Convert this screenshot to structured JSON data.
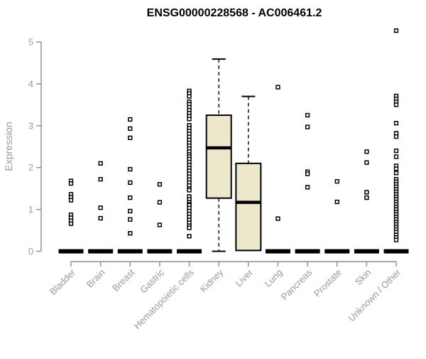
{
  "chart_data": {
    "type": "boxplot",
    "title": "ENSG00000228568 - AC006461.2",
    "ylabel": "Expression",
    "xlabel": "",
    "ylim": [
      0,
      5
    ],
    "yticks": [
      0,
      1,
      2,
      3,
      4,
      5
    ],
    "grid": false,
    "legend": "none",
    "categories": [
      "Bladder",
      "Brain",
      "Breast",
      "Gastric",
      "Hematopoietic cells",
      "Kidney",
      "Liver",
      "Lung",
      "Pancreas",
      "Prostate",
      "Skin",
      "Unknown / Other"
    ],
    "colors": {
      "box_fill": "#EDE8CC",
      "box_line": "#000000",
      "axis": "#8C8C8C",
      "label": "#999999",
      "title": "#000000",
      "outlier_fill": "#FFFFFF"
    },
    "boxes": [
      {
        "category": "Bladder",
        "q1": 0,
        "median": 0,
        "q3": 0,
        "whisker_low": 0,
        "whisker_high": 0,
        "outliers": [
          1.68,
          1.62,
          1.36,
          1.29,
          1.22,
          0.87,
          0.8,
          0.73,
          0.66
        ]
      },
      {
        "category": "Brain",
        "q1": 0,
        "median": 0,
        "q3": 0,
        "whisker_low": 0,
        "whisker_high": 0,
        "outliers": [
          2.1,
          1.72,
          1.04,
          0.79
        ]
      },
      {
        "category": "Breast",
        "q1": 0,
        "median": 0,
        "q3": 0,
        "whisker_low": 0,
        "whisker_high": 0,
        "outliers": [
          3.15,
          2.93,
          2.71,
          1.96,
          1.64,
          1.28,
          0.96,
          0.76,
          0.43
        ]
      },
      {
        "category": "Gastric",
        "q1": 0,
        "median": 0,
        "q3": 0,
        "whisker_low": 0,
        "whisker_high": 0,
        "outliers": [
          1.6,
          1.17,
          0.63
        ]
      },
      {
        "category": "Hematopoietic cells",
        "q1": 0,
        "median": 0,
        "q3": 0,
        "whisker_low": 0,
        "whisker_high": 0,
        "outliers": [
          3.83,
          3.77,
          3.7,
          3.57,
          3.51,
          3.44,
          3.37,
          3.3,
          3.23,
          3.16,
          3.01,
          2.94,
          2.87,
          2.8,
          2.73,
          2.66,
          2.59,
          2.52,
          2.45,
          2.38,
          2.31,
          2.26,
          2.2,
          2.13,
          2.06,
          1.99,
          1.92,
          1.85,
          1.78,
          1.71,
          1.64,
          1.57,
          1.5,
          1.46,
          1.31,
          1.24,
          1.17,
          1.12,
          1.1,
          1.03,
          0.96,
          0.89,
          0.82,
          0.75,
          0.68,
          0.61,
          0.56,
          0.36
        ]
      },
      {
        "category": "Kidney",
        "q1": 1.27,
        "median": 2.47,
        "q3": 3.25,
        "whisker_low": 0,
        "whisker_high": 4.59,
        "outliers": []
      },
      {
        "category": "Liver",
        "q1": 0.02,
        "median": 1.17,
        "q3": 2.1,
        "whisker_low": 0.02,
        "whisker_high": 3.7,
        "outliers": []
      },
      {
        "category": "Lung",
        "q1": 0,
        "median": 0,
        "q3": 0,
        "whisker_low": 0,
        "whisker_high": 0,
        "outliers": [
          3.92,
          0.78
        ]
      },
      {
        "category": "Pancreas",
        "q1": 0,
        "median": 0,
        "q3": 0,
        "whisker_low": 0,
        "whisker_high": 0,
        "outliers": [
          3.25,
          2.97,
          1.9,
          1.85,
          1.53
        ]
      },
      {
        "category": "Prostate",
        "q1": 0,
        "median": 0,
        "q3": 0,
        "whisker_low": 0,
        "whisker_high": 0,
        "outliers": [
          1.67,
          1.18
        ]
      },
      {
        "category": "Skin",
        "q1": 0,
        "median": 0,
        "q3": 0,
        "whisker_low": 0,
        "whisker_high": 0,
        "outliers": [
          2.38,
          2.12,
          1.41,
          1.28
        ]
      },
      {
        "category": "Unknown / Other",
        "q1": 0,
        "median": 0,
        "q3": 0,
        "whisker_low": 0,
        "whisker_high": 0,
        "outliers": [
          5.27,
          3.71,
          3.64,
          3.57,
          3.5,
          3.06,
          2.82,
          2.74,
          2.4,
          2.26,
          2.04,
          1.97,
          1.87,
          1.72,
          1.66,
          1.6,
          1.54,
          1.48,
          1.42,
          1.36,
          1.3,
          1.24,
          1.18,
          1.12,
          1.06,
          1.0,
          0.94,
          0.88,
          0.82,
          0.76,
          0.7,
          0.64,
          0.58,
          0.52,
          0.46,
          0.39,
          0.33,
          0.27
        ]
      }
    ]
  }
}
